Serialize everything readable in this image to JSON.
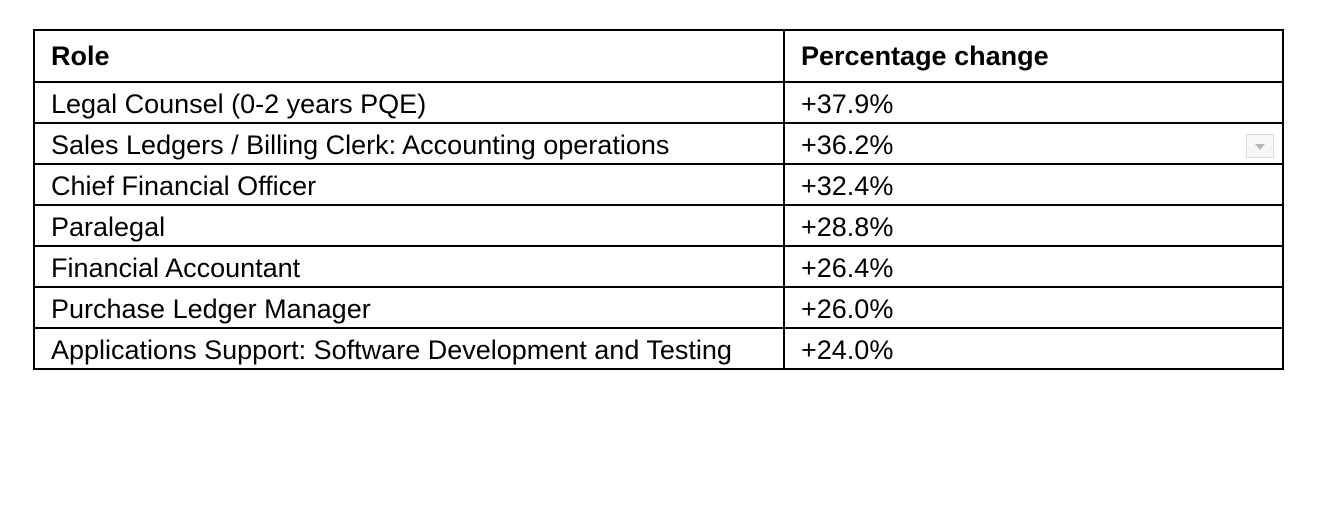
{
  "table": {
    "headers": {
      "role": "Role",
      "percentage": "Percentage change"
    },
    "rows": [
      {
        "role": "Legal Counsel (0-2 years PQE)",
        "change": "+37.9%"
      },
      {
        "role": "Sales Ledgers / Billing Clerk: Accounting operations",
        "change": "+36.2%"
      },
      {
        "role": "Chief Financial Officer",
        "change": "+32.4%"
      },
      {
        "role": "Paralegal",
        "change": "+28.8%"
      },
      {
        "role": "Financial Accountant",
        "change": "+26.4%"
      },
      {
        "role": "Purchase Ledger Manager",
        "change": "+26.0%"
      },
      {
        "role": "Applications Support: Software Development and Testing",
        "change": "+24.0%"
      }
    ]
  },
  "icons": {
    "dropdown": "chevron-down-icon"
  }
}
